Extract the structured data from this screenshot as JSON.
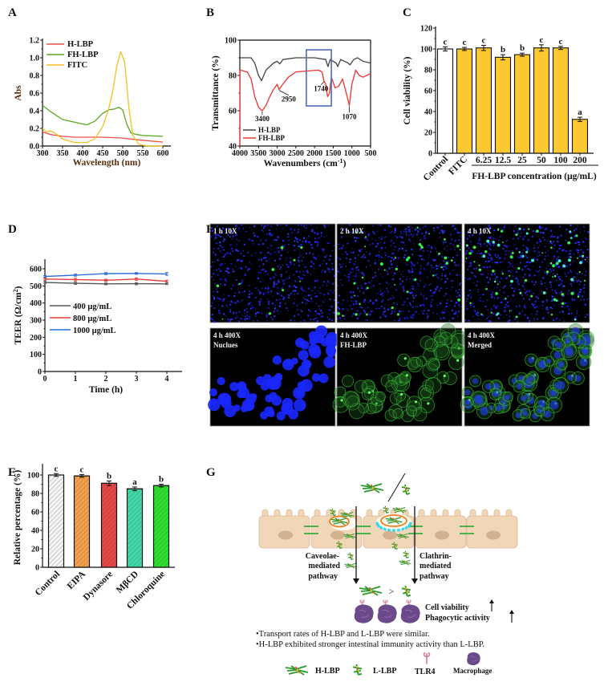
{
  "panels": {
    "A": "A",
    "B": "B",
    "C": "C",
    "D": "D",
    "E": "E",
    "F": "F",
    "G": "G"
  },
  "chart_data": [
    {
      "panel": "A",
      "type": "line",
      "xlabel": "Wavelength (nm)",
      "ylabel": "Abs",
      "xlim": [
        300,
        620
      ],
      "ylim": [
        0,
        1.2
      ],
      "xticks": [
        300,
        350,
        400,
        450,
        500,
        550,
        600
      ],
      "yticks": [
        0.0,
        0.2,
        0.4,
        0.6,
        0.8,
        1.0,
        1.2
      ],
      "legend": "top-left",
      "label_color": "#5a2d0c",
      "series": [
        {
          "name": "H-LBP",
          "color": "#e8504a",
          "x": [
            300,
            320,
            350,
            380,
            400,
            450,
            500,
            530,
            550,
            600
          ],
          "y": [
            0.16,
            0.13,
            0.11,
            0.1,
            0.1,
            0.1,
            0.09,
            0.075,
            0.065,
            0.045
          ]
        },
        {
          "name": "FH-LBP",
          "color": "#5aaa1e",
          "x": [
            300,
            320,
            350,
            380,
            400,
            410,
            430,
            450,
            465,
            480,
            490,
            500,
            510,
            520,
            535,
            550,
            600
          ],
          "y": [
            0.46,
            0.39,
            0.3,
            0.27,
            0.25,
            0.24,
            0.28,
            0.37,
            0.41,
            0.42,
            0.44,
            0.41,
            0.25,
            0.15,
            0.13,
            0.12,
            0.11
          ]
        },
        {
          "name": "FITC",
          "color": "#f5c020",
          "x": [
            300,
            310,
            320,
            330,
            350,
            380,
            410,
            430,
            450,
            465,
            475,
            485,
            495,
            505,
            515,
            525,
            540,
            560,
            600
          ],
          "y": [
            0.2,
            0.16,
            0.17,
            0.15,
            0.08,
            0.04,
            0.04,
            0.08,
            0.22,
            0.42,
            0.62,
            0.9,
            1.07,
            0.95,
            0.45,
            0.12,
            0.02,
            0.0,
            0.0
          ]
        }
      ]
    },
    {
      "panel": "B",
      "type": "line",
      "xlabel_main": "Wavenumbers (cm",
      "xlabel_sup": "-1",
      "xlabel_end": ")",
      "ylabel": "Transmittance (%)",
      "xlim": [
        4000,
        500
      ],
      "ylim": [
        40,
        100
      ],
      "xticks": [
        4000,
        3500,
        3000,
        2500,
        2000,
        1500,
        1000,
        500
      ],
      "yticks": [
        40,
        60,
        80,
        100
      ],
      "legend": "bottom-left",
      "highlight_box": {
        "x": [
          2220,
          1550
        ],
        "y": [
          62.7,
          94.5
        ],
        "color": "#4a6fb5"
      },
      "annotations": [
        {
          "text": "3400",
          "x": 3400,
          "y": 60
        },
        {
          "text": "2950",
          "x": 2950,
          "y": 72
        },
        {
          "text": "1740",
          "x": 1740,
          "y": 77
        },
        {
          "text": "1070",
          "x": 1070,
          "y": 63
        }
      ],
      "series": [
        {
          "name": "H-LBP",
          "color": "#444444",
          "x": [
            4000,
            3700,
            3600,
            3500,
            3420,
            3300,
            3100,
            3000,
            2930,
            2850,
            2500,
            2000,
            1700,
            1640,
            1580,
            1500,
            1420,
            1380,
            1300,
            1100,
            1050,
            950,
            850,
            700,
            500
          ],
          "y": [
            90,
            90,
            87,
            80,
            77,
            83,
            87,
            88,
            86.5,
            89,
            90,
            90,
            89,
            85,
            89,
            88,
            87,
            85,
            89,
            87,
            86,
            89,
            90,
            88,
            87
          ]
        },
        {
          "name": "FH-LBP",
          "color": "#ee3333",
          "x": [
            4000,
            3995,
            3800,
            3700,
            3600,
            3500,
            3400,
            3300,
            3200,
            3100,
            3000,
            2950,
            2850,
            2700,
            2500,
            2200,
            1900,
            1800,
            1750,
            1700,
            1650,
            1600,
            1550,
            1450,
            1350,
            1250,
            1150,
            1070,
            1000,
            900,
            800,
            700,
            600,
            500
          ],
          "y": [
            40,
            83,
            82,
            78,
            68,
            62,
            60,
            63,
            68,
            72,
            75,
            72,
            75,
            79,
            82,
            82.5,
            83,
            82,
            77,
            75,
            68,
            70,
            79,
            73,
            74,
            78,
            70,
            63,
            75,
            83,
            80,
            79,
            80,
            81
          ]
        }
      ]
    },
    {
      "panel": "C",
      "type": "bar",
      "ylabel": "Cell viability (%)",
      "xlabel": "FH-LBP concentration (μg/mL)",
      "categories": [
        "Control",
        "FITC",
        "6.25",
        "12.5",
        "25",
        "50",
        "100",
        "200"
      ],
      "values": [
        100,
        100,
        101,
        92,
        94.5,
        101,
        101,
        32.5
      ],
      "errors": [
        2,
        1.5,
        2.5,
        2.5,
        1.5,
        3,
        1.5,
        2
      ],
      "letters": [
        "c",
        "c",
        "c",
        "b",
        "b",
        "c",
        "c",
        "a"
      ],
      "colors": [
        "#ffffff",
        "#fcc832",
        "#fcc832",
        "#fcc832",
        "#fcc832",
        "#fcc832",
        "#fcc832",
        "#fcc832"
      ],
      "ylim": [
        0,
        120
      ],
      "yticks": [
        0,
        20,
        40,
        60,
        80,
        100,
        120
      ]
    },
    {
      "panel": "D",
      "type": "line",
      "xlabel": "Time (h)",
      "ylabel_main": "TEER (Ω/cm",
      "ylabel_sup": "2",
      "ylabel_end": ")",
      "x": [
        0,
        1,
        2,
        3,
        4
      ],
      "xlim": [
        0,
        4.5
      ],
      "ylim": [
        0,
        650
      ],
      "xticks": [
        0,
        1,
        2,
        3,
        4
      ],
      "yticks": [
        0,
        100,
        200,
        300,
        400,
        500,
        600
      ],
      "legend": "center-left",
      "series": [
        {
          "name": "400 μg/mL",
          "color": "#555555",
          "values": [
            520,
            515,
            512,
            513,
            512
          ],
          "errors": [
            5,
            6,
            5,
            6,
            4
          ]
        },
        {
          "name": "800 μg/mL",
          "color": "#e83a3a",
          "values": [
            540,
            537,
            533,
            540,
            527
          ],
          "errors": [
            6,
            8,
            6,
            7,
            6
          ]
        },
        {
          "name": "1000 μg/mL",
          "color": "#2a6fd6",
          "values": [
            555,
            563,
            572,
            573,
            570
          ],
          "errors": [
            5,
            6,
            6,
            5,
            8
          ]
        }
      ]
    },
    {
      "panel": "E",
      "type": "bar",
      "ylabel": "Relative percentage (%)",
      "categories": [
        "Control",
        "EIPA",
        "Dynasore",
        "MβCD",
        "Chloroquine"
      ],
      "values": [
        100,
        99,
        91,
        85,
        88.5
      ],
      "errors": [
        1.5,
        1.5,
        2.5,
        2,
        1.5
      ],
      "letters": [
        "c",
        "c",
        "b",
        "a",
        "b"
      ],
      "colors": [
        "#f4f4f4",
        "#f5a04a",
        "#e84545",
        "#40d9a8",
        "#2ee02e"
      ],
      "hatched": true,
      "ylim": [
        0,
        110
      ],
      "yticks": [
        0,
        20,
        40,
        60,
        80,
        100
      ]
    }
  ],
  "panel_F": {
    "images": [
      {
        "caption": [
          "1 h 10X"
        ],
        "green_level": 0.1
      },
      {
        "caption": [
          "2 h 10X"
        ],
        "green_level": 0.4
      },
      {
        "caption": [
          "4 h 10X"
        ],
        "green_level": 0.8
      },
      {
        "caption": [
          "4 h 400X",
          "Nuclues"
        ]
      },
      {
        "caption": [
          "4 h 400X",
          "FH-LBP"
        ]
      },
      {
        "caption": [
          "4 h 400X",
          "Merged"
        ]
      }
    ]
  },
  "panel_G": {
    "pathway_left": [
      "Caveolae-",
      "mediated",
      "pathway"
    ],
    "pathway_right": [
      "Clathrin-",
      "mediated",
      "pathway"
    ],
    "comparison": ">",
    "effects": [
      "Cell viability",
      "Phagocytic activity"
    ],
    "bullets": [
      "•Transport rates of H-LBP and L-LBP were similar.",
      "•H-LBP  exhibited stronger intestinal immunity activity than L-LBP."
    ],
    "legend": {
      "hlbp": "H-LBP",
      "llbp": "L-LBP",
      "tlr4": "TLR4",
      "macrophage": "Macrophage"
    }
  }
}
